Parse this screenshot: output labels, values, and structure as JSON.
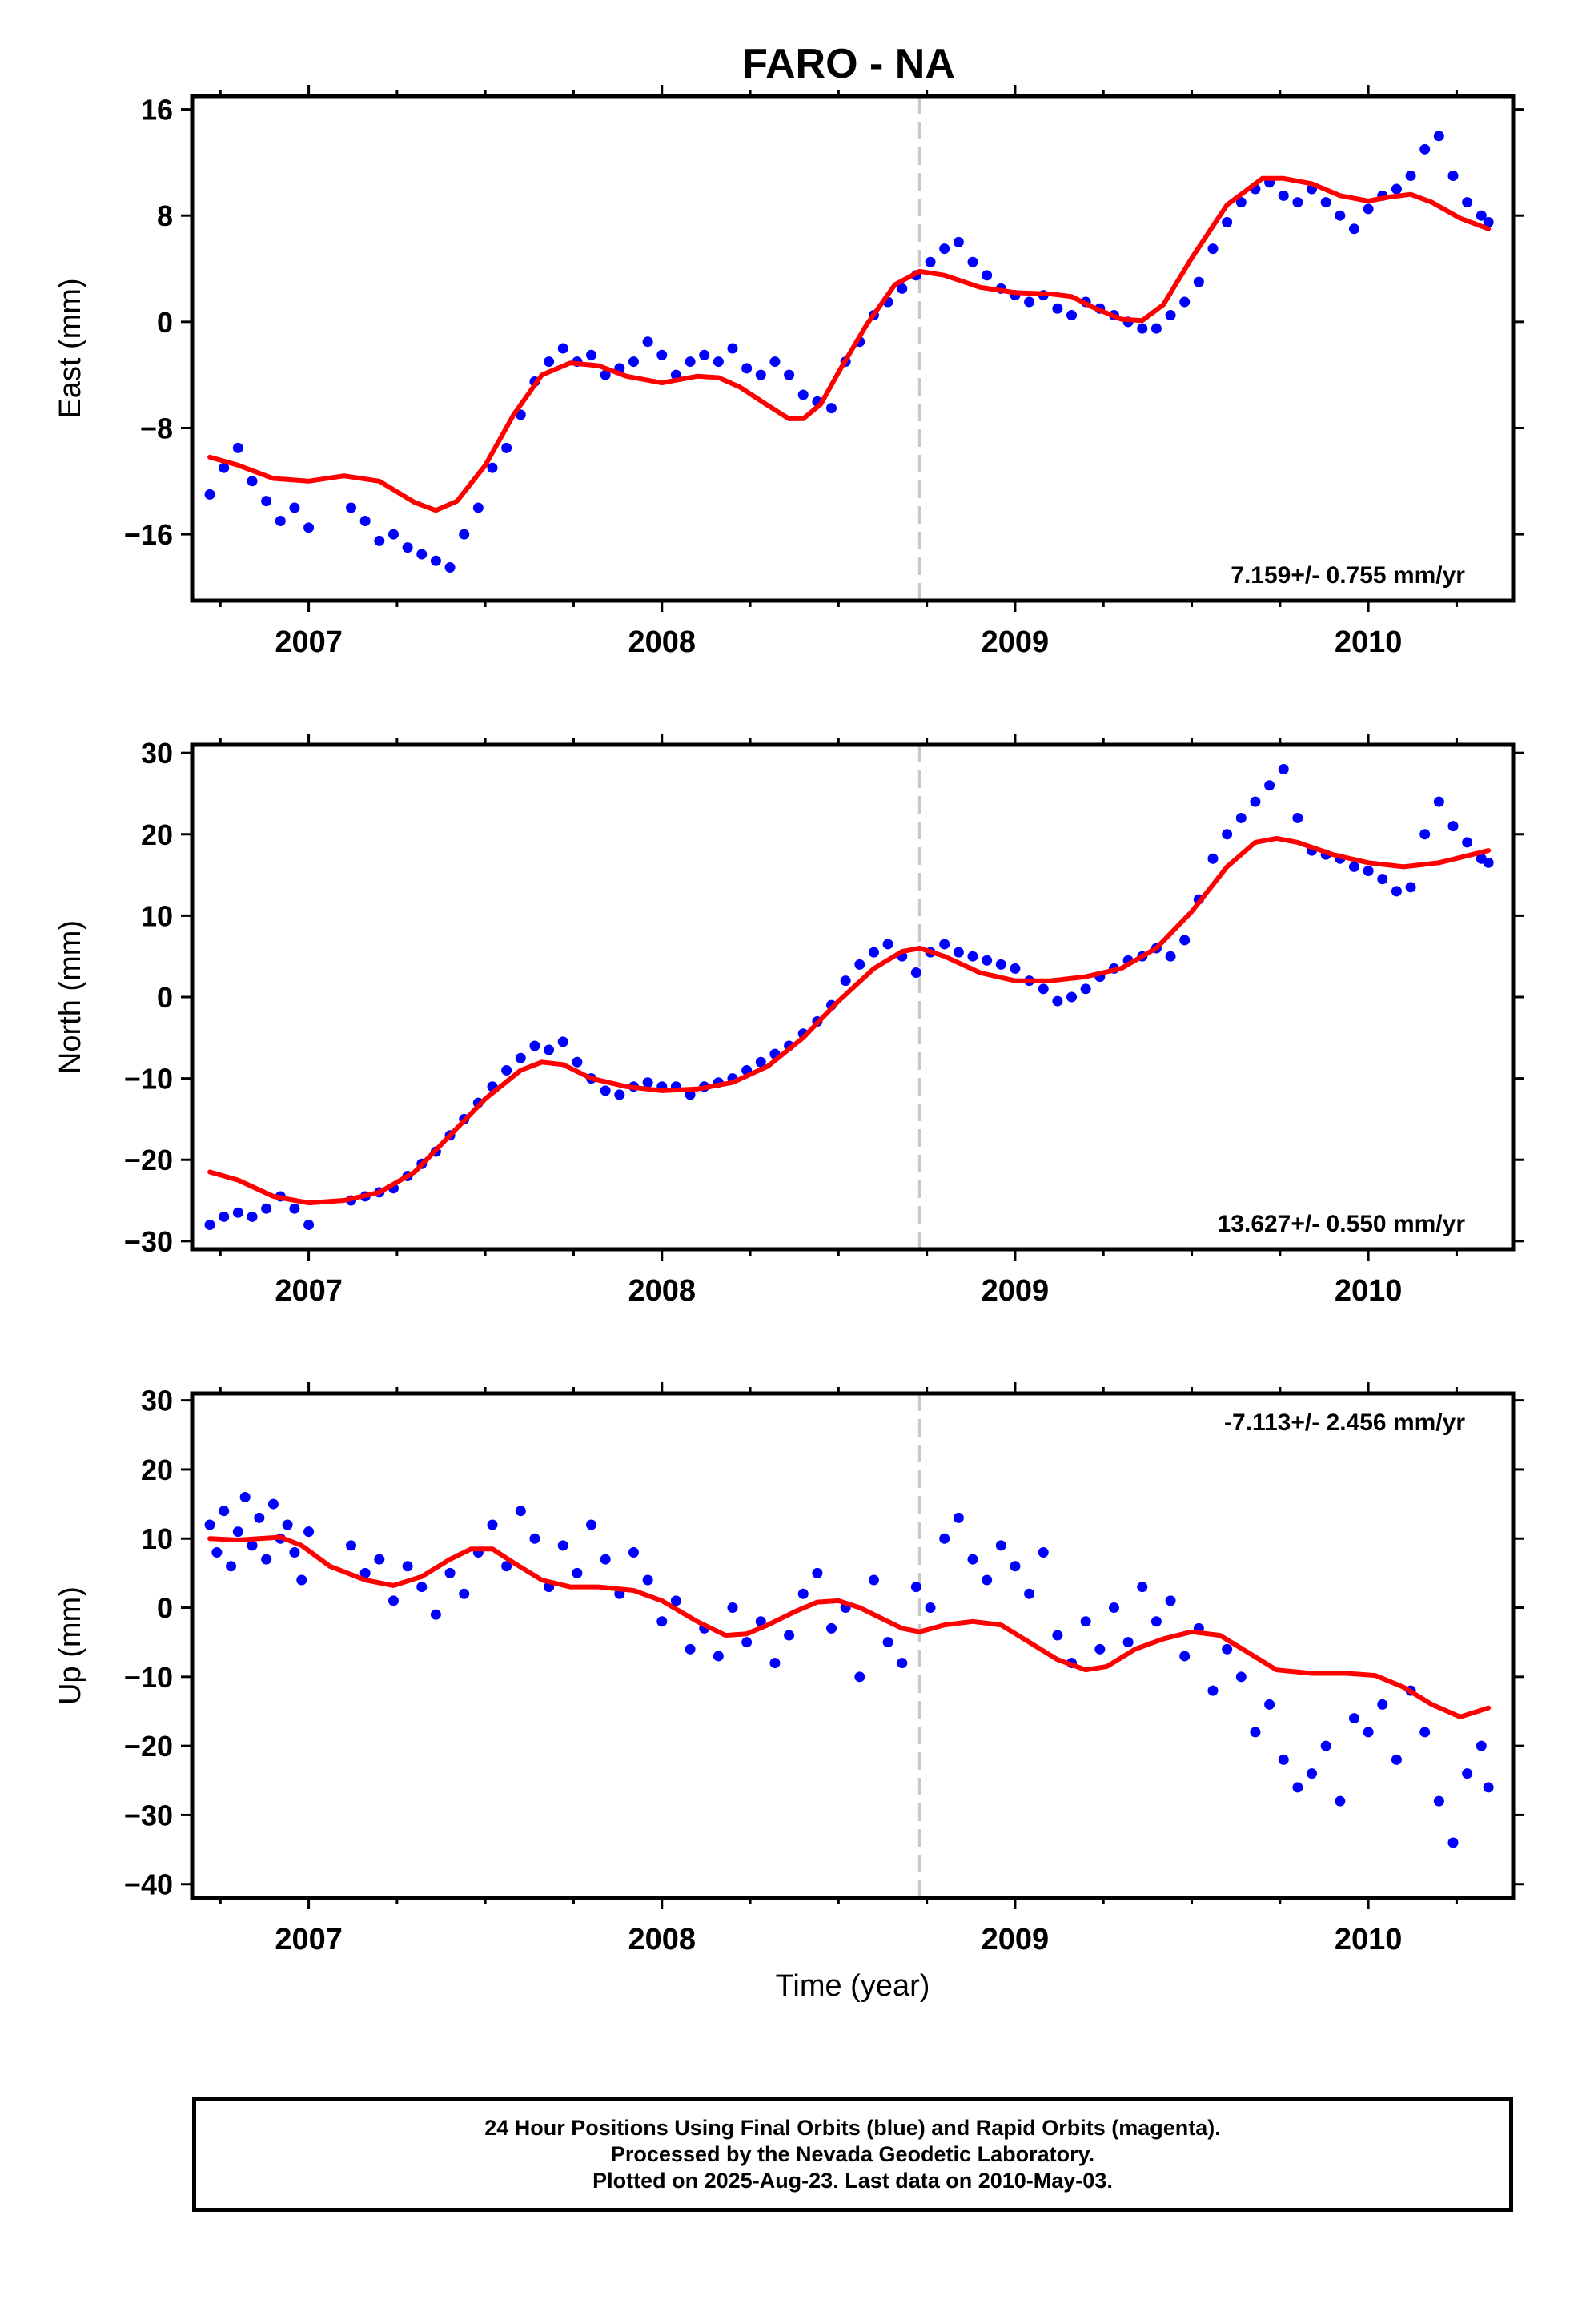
{
  "chart_data": {
    "type": "scatter",
    "title": "FARO - NA",
    "xlabel": "Time (year)",
    "xlim": [
      2006.67,
      2010.41
    ],
    "x_ticks": [
      2007,
      2008,
      2009,
      2010
    ],
    "x_tick_labels": [
      "2007",
      "2008",
      "2009",
      "2010"
    ],
    "vertical_marker_x": 2008.73,
    "series_colors": {
      "points": "#0000ff",
      "fit": "#ff0000",
      "marker": "#c8c8c8"
    },
    "panels": [
      {
        "ylabel": "East (mm)",
        "ylim": [
          -21,
          17
        ],
        "y_ticks": [
          -16,
          -8,
          0,
          8,
          16
        ],
        "y_tick_labels": [
          "−16",
          "−8",
          "0",
          "8",
          "16"
        ],
        "rate_text": "7.159+/- 0.755 mm/yr",
        "rate_position": "bottom-right",
        "points": {
          "x": [
            2006.72,
            2006.76,
            2006.8,
            2006.84,
            2006.88,
            2006.92,
            2006.96,
            2007.0,
            2007.12,
            2007.16,
            2007.2,
            2007.24,
            2007.28,
            2007.32,
            2007.36,
            2007.4,
            2007.44,
            2007.48,
            2007.52,
            2007.56,
            2007.6,
            2007.64,
            2007.68,
            2007.72,
            2007.76,
            2007.8,
            2007.84,
            2007.88,
            2007.92,
            2007.96,
            2008.0,
            2008.04,
            2008.08,
            2008.12,
            2008.16,
            2008.2,
            2008.24,
            2008.28,
            2008.32,
            2008.36,
            2008.4,
            2008.44,
            2008.48,
            2008.52,
            2008.56,
            2008.6,
            2008.64,
            2008.68,
            2008.72,
            2008.76,
            2008.8,
            2008.84,
            2008.88,
            2008.92,
            2008.96,
            2009.0,
            2009.04,
            2009.08,
            2009.12,
            2009.16,
            2009.2,
            2009.24,
            2009.28,
            2009.32,
            2009.36,
            2009.4,
            2009.44,
            2009.48,
            2009.52,
            2009.56,
            2009.6,
            2009.64,
            2009.68,
            2009.72,
            2009.76,
            2009.8,
            2009.84,
            2009.88,
            2009.92,
            2009.96,
            2010.0,
            2010.04,
            2010.08,
            2010.12,
            2010.16,
            2010.2,
            2010.24,
            2010.28,
            2010.32,
            2010.34
          ],
          "y": [
            -13.0,
            -11.0,
            -9.5,
            -12.0,
            -13.5,
            -15.0,
            -14.0,
            -15.5,
            -14.0,
            -15.0,
            -16.5,
            -16.0,
            -17.0,
            -17.5,
            -18.0,
            -18.5,
            -16.0,
            -14.0,
            -11.0,
            -9.5,
            -7.0,
            -4.5,
            -3.0,
            -2.0,
            -3.0,
            -2.5,
            -4.0,
            -3.5,
            -3.0,
            -1.5,
            -2.5,
            -4.0,
            -3.0,
            -2.5,
            -3.0,
            -2.0,
            -3.5,
            -4.0,
            -3.0,
            -4.0,
            -5.5,
            -6.0,
            -6.5,
            -3.0,
            -1.5,
            0.5,
            1.5,
            2.5,
            3.5,
            4.5,
            5.5,
            6.0,
            4.5,
            3.5,
            2.5,
            2.0,
            1.5,
            2.0,
            1.0,
            0.5,
            1.5,
            1.0,
            0.5,
            0.0,
            -0.5,
            -0.5,
            0.5,
            1.5,
            3.0,
            5.5,
            7.5,
            9.0,
            10.0,
            10.5,
            9.5,
            9.0,
            10.0,
            9.0,
            8.0,
            7.0,
            8.5,
            9.5,
            10.0,
            11.0,
            13.0,
            14.0,
            11.0,
            9.0,
            8.0,
            7.5
          ]
        },
        "fit": {
          "x": [
            2006.72,
            2006.8,
            2006.9,
            2007.0,
            2007.1,
            2007.2,
            2007.3,
            2007.36,
            2007.42,
            2007.5,
            2007.58,
            2007.66,
            2007.74,
            2007.82,
            2007.9,
            2008.0,
            2008.1,
            2008.16,
            2008.22,
            2008.3,
            2008.36,
            2008.4,
            2008.45,
            2008.5,
            2008.58,
            2008.66,
            2008.73,
            2008.8,
            2008.9,
            2009.0,
            2009.1,
            2009.16,
            2009.22,
            2009.3,
            2009.36,
            2009.42,
            2009.5,
            2009.6,
            2009.7,
            2009.76,
            2009.84,
            2009.92,
            2010.0,
            2010.06,
            2010.12,
            2010.18,
            2010.26,
            2010.34
          ],
          "y": [
            -10.2,
            -10.8,
            -11.8,
            -12.0,
            -11.6,
            -12.0,
            -13.6,
            -14.2,
            -13.5,
            -10.8,
            -7.0,
            -4.0,
            -3.1,
            -3.3,
            -4.1,
            -4.6,
            -4.1,
            -4.2,
            -4.9,
            -6.3,
            -7.3,
            -7.3,
            -6.2,
            -3.8,
            -0.2,
            2.8,
            3.8,
            3.5,
            2.6,
            2.2,
            2.1,
            1.9,
            1.1,
            0.2,
            0.1,
            1.3,
            4.8,
            8.8,
            10.8,
            10.8,
            10.4,
            9.5,
            9.1,
            9.4,
            9.6,
            9.0,
            7.8,
            7.0
          ]
        }
      },
      {
        "ylabel": "North (mm)",
        "ylim": [
          -31,
          31
        ],
        "y_ticks": [
          -30,
          -20,
          -10,
          0,
          10,
          20,
          30
        ],
        "y_tick_labels": [
          "−30",
          "−20",
          "−10",
          "0",
          "10",
          "20",
          "30"
        ],
        "rate_text": "13.627+/- 0.550 mm/yr",
        "rate_position": "bottom-right",
        "points": {
          "x": [
            2006.72,
            2006.76,
            2006.8,
            2006.84,
            2006.88,
            2006.92,
            2006.96,
            2007.0,
            2007.12,
            2007.16,
            2007.2,
            2007.24,
            2007.28,
            2007.32,
            2007.36,
            2007.4,
            2007.44,
            2007.48,
            2007.52,
            2007.56,
            2007.6,
            2007.64,
            2007.68,
            2007.72,
            2007.76,
            2007.8,
            2007.84,
            2007.88,
            2007.92,
            2007.96,
            2008.0,
            2008.04,
            2008.08,
            2008.12,
            2008.16,
            2008.2,
            2008.24,
            2008.28,
            2008.32,
            2008.36,
            2008.4,
            2008.44,
            2008.48,
            2008.52,
            2008.56,
            2008.6,
            2008.64,
            2008.68,
            2008.72,
            2008.76,
            2008.8,
            2008.84,
            2008.88,
            2008.92,
            2008.96,
            2009.0,
            2009.04,
            2009.08,
            2009.12,
            2009.16,
            2009.2,
            2009.24,
            2009.28,
            2009.32,
            2009.36,
            2009.4,
            2009.44,
            2009.48,
            2009.52,
            2009.56,
            2009.6,
            2009.64,
            2009.68,
            2009.72,
            2009.76,
            2009.8,
            2009.84,
            2009.88,
            2009.92,
            2009.96,
            2010.0,
            2010.04,
            2010.08,
            2010.12,
            2010.16,
            2010.2,
            2010.24,
            2010.28,
            2010.32,
            2010.34
          ],
          "y": [
            -28.0,
            -27.0,
            -26.5,
            -27.0,
            -26.0,
            -24.5,
            -26.0,
            -28.0,
            -25.0,
            -24.5,
            -24.0,
            -23.5,
            -22.0,
            -20.5,
            -19.0,
            -17.0,
            -15.0,
            -13.0,
            -11.0,
            -9.0,
            -7.5,
            -6.0,
            -6.5,
            -5.5,
            -8.0,
            -10.0,
            -11.5,
            -12.0,
            -11.0,
            -10.5,
            -11.0,
            -11.0,
            -12.0,
            -11.0,
            -10.5,
            -10.0,
            -9.0,
            -8.0,
            -7.0,
            -6.0,
            -4.5,
            -3.0,
            -1.0,
            2.0,
            4.0,
            5.5,
            6.5,
            5.0,
            3.0,
            5.5,
            6.5,
            5.5,
            5.0,
            4.5,
            4.0,
            3.5,
            2.0,
            1.0,
            -0.5,
            0.0,
            1.0,
            2.5,
            3.5,
            4.5,
            5.0,
            6.0,
            5.0,
            7.0,
            12.0,
            17.0,
            20.0,
            22.0,
            24.0,
            26.0,
            28.0,
            22.0,
            18.0,
            17.5,
            17.0,
            16.0,
            15.5,
            14.5,
            13.0,
            13.5,
            20.0,
            24.0,
            21.0,
            19.0,
            17.0,
            16.5
          ]
        },
        "fit": {
          "x": [
            2006.72,
            2006.8,
            2006.9,
            2007.0,
            2007.1,
            2007.2,
            2007.3,
            2007.4,
            2007.5,
            2007.6,
            2007.66,
            2007.72,
            2007.8,
            2007.9,
            2008.0,
            2008.1,
            2008.2,
            2008.3,
            2008.4,
            2008.5,
            2008.6,
            2008.68,
            2008.73,
            2008.8,
            2008.9,
            2009.0,
            2009.1,
            2009.2,
            2009.3,
            2009.4,
            2009.5,
            2009.6,
            2009.68,
            2009.74,
            2009.8,
            2009.9,
            2010.0,
            2010.1,
            2010.2,
            2010.34
          ],
          "y": [
            -21.5,
            -22.5,
            -24.5,
            -25.3,
            -25.0,
            -24.0,
            -21.5,
            -17.0,
            -12.5,
            -9.0,
            -8.0,
            -8.3,
            -10.0,
            -11.0,
            -11.5,
            -11.3,
            -10.5,
            -8.5,
            -5.0,
            -0.5,
            3.5,
            5.6,
            6.0,
            5.0,
            3.0,
            2.0,
            2.0,
            2.5,
            3.5,
            6.0,
            10.5,
            16.0,
            19.0,
            19.5,
            19.0,
            17.5,
            16.5,
            16.0,
            16.5,
            18.0
          ]
        }
      },
      {
        "ylabel": "Up (mm)",
        "ylim": [
          -42,
          31
        ],
        "y_ticks": [
          -40,
          -30,
          -20,
          -10,
          0,
          10,
          20,
          30
        ],
        "y_tick_labels": [
          "−40",
          "−30",
          "−20",
          "−10",
          "0",
          "10",
          "20",
          "30"
        ],
        "rate_text": "-7.113+/- 2.456 mm/yr",
        "rate_position": "top-right",
        "points": {
          "x": [
            2006.72,
            2006.74,
            2006.76,
            2006.78,
            2006.8,
            2006.82,
            2006.84,
            2006.86,
            2006.88,
            2006.9,
            2006.92,
            2006.94,
            2006.96,
            2006.98,
            2007.0,
            2007.12,
            2007.16,
            2007.2,
            2007.24,
            2007.28,
            2007.32,
            2007.36,
            2007.4,
            2007.44,
            2007.48,
            2007.52,
            2007.56,
            2007.6,
            2007.64,
            2007.68,
            2007.72,
            2007.76,
            2007.8,
            2007.84,
            2007.88,
            2007.92,
            2007.96,
            2008.0,
            2008.04,
            2008.08,
            2008.12,
            2008.16,
            2008.2,
            2008.24,
            2008.28,
            2008.32,
            2008.36,
            2008.4,
            2008.44,
            2008.48,
            2008.52,
            2008.56,
            2008.6,
            2008.64,
            2008.68,
            2008.72,
            2008.76,
            2008.8,
            2008.84,
            2008.88,
            2008.92,
            2008.96,
            2009.0,
            2009.04,
            2009.08,
            2009.12,
            2009.16,
            2009.2,
            2009.24,
            2009.28,
            2009.32,
            2009.36,
            2009.4,
            2009.44,
            2009.48,
            2009.52,
            2009.56,
            2009.6,
            2009.64,
            2009.68,
            2009.72,
            2009.76,
            2009.8,
            2009.84,
            2009.88,
            2009.92,
            2009.96,
            2010.0,
            2010.04,
            2010.08,
            2010.12,
            2010.16,
            2010.2,
            2010.24,
            2010.28,
            2010.32,
            2010.34
          ],
          "y": [
            12.0,
            8.0,
            14.0,
            6.0,
            11.0,
            16.0,
            9.0,
            13.0,
            7.0,
            15.0,
            10.0,
            12.0,
            8.0,
            4.0,
            11.0,
            9.0,
            5.0,
            7.0,
            1.0,
            6.0,
            3.0,
            -1.0,
            5.0,
            2.0,
            8.0,
            12.0,
            6.0,
            14.0,
            10.0,
            3.0,
            9.0,
            5.0,
            12.0,
            7.0,
            2.0,
            8.0,
            4.0,
            -2.0,
            1.0,
            -6.0,
            -3.0,
            -7.0,
            0.0,
            -5.0,
            -2.0,
            -8.0,
            -4.0,
            2.0,
            5.0,
            -3.0,
            0.0,
            -10.0,
            4.0,
            -5.0,
            -8.0,
            3.0,
            0.0,
            10.0,
            13.0,
            7.0,
            4.0,
            9.0,
            6.0,
            2.0,
            8.0,
            -4.0,
            -8.0,
            -2.0,
            -6.0,
            0.0,
            -5.0,
            3.0,
            -2.0,
            1.0,
            -7.0,
            -3.0,
            -12.0,
            -6.0,
            -10.0,
            -18.0,
            -14.0,
            -22.0,
            -26.0,
            -24.0,
            -20.0,
            -28.0,
            -16.0,
            -18.0,
            -14.0,
            -22.0,
            -12.0,
            -18.0,
            -28.0,
            -34.0,
            -24.0,
            -20.0,
            -26.0
          ]
        },
        "fit": {
          "x": [
            2006.72,
            2006.8,
            2006.86,
            2006.92,
            2006.98,
            2007.06,
            2007.16,
            2007.24,
            2007.32,
            2007.4,
            2007.46,
            2007.52,
            2007.58,
            2007.66,
            2007.74,
            2007.82,
            2007.92,
            2008.0,
            2008.1,
            2008.18,
            2008.24,
            2008.3,
            2008.38,
            2008.44,
            2008.5,
            2008.56,
            2008.62,
            2008.68,
            2008.73,
            2008.8,
            2008.88,
            2008.96,
            2009.04,
            2009.12,
            2009.2,
            2009.26,
            2009.34,
            2009.42,
            2009.5,
            2009.58,
            2009.66,
            2009.74,
            2009.84,
            2009.94,
            2010.02,
            2010.1,
            2010.18,
            2010.26,
            2010.34
          ],
          "y": [
            10.0,
            9.8,
            10.0,
            10.2,
            9.0,
            6.0,
            4.0,
            3.2,
            4.5,
            7.0,
            8.5,
            8.5,
            6.5,
            4.0,
            3.0,
            3.0,
            2.5,
            1.0,
            -2.0,
            -4.0,
            -3.8,
            -2.5,
            -0.5,
            0.8,
            1.0,
            0.0,
            -1.5,
            -3.0,
            -3.5,
            -2.5,
            -2.0,
            -2.5,
            -5.0,
            -7.5,
            -9.0,
            -8.5,
            -6.0,
            -4.5,
            -3.5,
            -4.0,
            -6.5,
            -9.0,
            -9.5,
            -9.5,
            -9.8,
            -11.5,
            -14.0,
            -15.8,
            -14.5
          ]
        }
      }
    ]
  },
  "footer": {
    "line1": "24 Hour Positions Using Final Orbits (blue) and Rapid Orbits (magenta).",
    "line2": "Processed by the Nevada Geodetic Laboratory.",
    "line3": "Plotted on 2025-Aug-23. Last data on 2010-May-03."
  }
}
